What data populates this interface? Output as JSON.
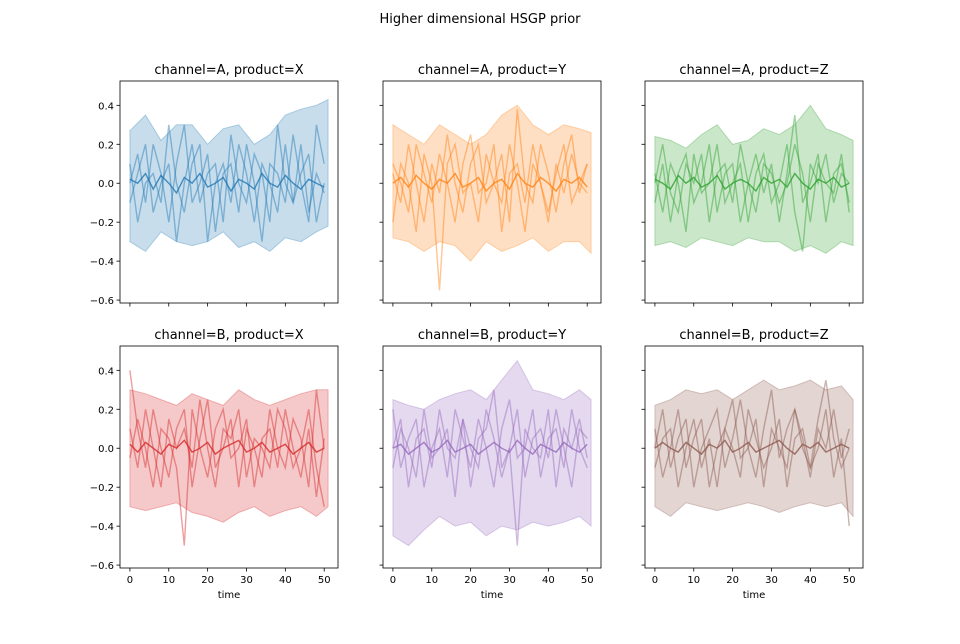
{
  "chart_data": {
    "type": "area",
    "title": "Higher dimensional HSGP prior",
    "shared_y": true,
    "shared_x": true,
    "xlim": [
      -2.55,
      53.55
    ],
    "ylim": [
      -0.615,
      0.525
    ],
    "x_ticks": [
      0,
      10,
      20,
      30,
      40,
      50
    ],
    "y_ticks": [
      -0.6,
      -0.4,
      -0.2,
      0.0,
      0.2,
      0.4
    ],
    "y_tick_labels": [
      "−0.6",
      "−0.4",
      "−0.2",
      "0.0",
      "0.2",
      "0.4"
    ],
    "x_tick_labels": [
      "0",
      "10",
      "20",
      "30",
      "40",
      "50"
    ],
    "xlabel": "time",
    "grid": false,
    "band_x": [
      0,
      4,
      8,
      12,
      16,
      20,
      24,
      28,
      32,
      36,
      40,
      44,
      48,
      51
    ],
    "line_x": [
      0,
      2,
      4,
      6,
      8,
      10,
      12,
      14,
      16,
      18,
      20,
      22,
      24,
      26,
      28,
      30,
      32,
      34,
      36,
      38,
      40,
      42,
      44,
      46,
      48,
      50
    ],
    "panels": [
      {
        "title": "channel=A, product=X",
        "color": "#1f77b4",
        "upper": [
          0.27,
          0.35,
          0.22,
          0.3,
          0.3,
          0.2,
          0.28,
          0.3,
          0.2,
          0.25,
          0.35,
          0.38,
          0.4,
          0.43
        ],
        "lower": [
          -0.3,
          -0.35,
          -0.25,
          -0.3,
          -0.32,
          -0.3,
          -0.25,
          -0.33,
          -0.3,
          -0.35,
          -0.28,
          -0.3,
          -0.25,
          -0.22
        ],
        "lines": [
          [
            0.0,
            0.15,
            -0.1,
            0.2,
            0.05,
            -0.2,
            0.1,
            0.3,
            -0.1,
            0.0,
            0.15,
            -0.25,
            0.05,
            0.1,
            -0.15,
            0.2,
            0.0,
            -0.3,
            0.1,
            0.05,
            -0.1,
            0.25,
            0.0,
            -0.2,
            0.3,
            0.1
          ],
          [
            -0.1,
            0.05,
            0.2,
            -0.15,
            0.0,
            0.1,
            -0.3,
            0.0,
            0.2,
            -0.1,
            0.05,
            0.1,
            -0.2,
            0.25,
            0.0,
            -0.1,
            0.15,
            0.05,
            -0.2,
            0.3,
            0.0,
            -0.1,
            0.2,
            -0.15,
            0.05,
            -0.05
          ],
          [
            0.1,
            -0.2,
            0.0,
            0.05,
            -0.1,
            0.3,
            0.0,
            -0.15,
            0.1,
            0.2,
            -0.3,
            0.0,
            0.1,
            -0.1,
            0.2,
            0.05,
            -0.2,
            0.1,
            0.0,
            -0.15,
            0.2,
            -0.1,
            0.05,
            0.15,
            -0.2,
            0.0
          ],
          [
            0.02,
            0.0,
            0.05,
            -0.03,
            0.04,
            0.0,
            -0.05,
            0.03,
            0.0,
            0.05,
            -0.02,
            0.0,
            0.03,
            -0.04,
            0.02,
            0.0,
            -0.03,
            0.05,
            0.0,
            -0.02,
            0.04,
            0.0,
            -0.03,
            0.02,
            0.0,
            -0.02
          ]
        ]
      },
      {
        "title": "channel=A, product=Y",
        "color": "#ff7f0e",
        "upper": [
          0.3,
          0.25,
          0.2,
          0.3,
          0.25,
          0.2,
          0.25,
          0.35,
          0.4,
          0.3,
          0.25,
          0.3,
          0.28,
          0.26
        ],
        "lower": [
          -0.28,
          -0.3,
          -0.35,
          -0.3,
          -0.32,
          -0.4,
          -0.3,
          -0.35,
          -0.32,
          -0.28,
          -0.35,
          -0.3,
          -0.3,
          -0.36
        ],
        "lines": [
          [
            0.05,
            -0.1,
            0.2,
            0.0,
            -0.2,
            0.1,
            -0.05,
            0.25,
            0.0,
            -0.15,
            0.1,
            0.2,
            -0.1,
            0.0,
            0.15,
            -0.2,
            0.38,
            0.0,
            -0.1,
            0.2,
            0.05,
            -0.15,
            0.1,
            0.25,
            -0.05,
            0.1
          ],
          [
            -0.2,
            0.1,
            0.0,
            -0.25,
            0.15,
            0.0,
            -0.55,
            0.1,
            0.2,
            -0.05,
            0.0,
            -0.2,
            0.15,
            0.0,
            -0.1,
            0.2,
            0.0,
            -0.25,
            0.1,
            0.0,
            -0.15,
            0.05,
            0.2,
            -0.1,
            0.0,
            -0.05
          ],
          [
            0.1,
            0.0,
            -0.15,
            0.2,
            0.05,
            -0.1,
            0.15,
            0.0,
            -0.2,
            0.1,
            0.25,
            -0.05,
            0.0,
            0.2,
            -0.25,
            0.05,
            0.1,
            -0.1,
            0.2,
            0.0,
            -0.2,
            0.1,
            -0.05,
            0.15,
            0.0,
            0.1
          ],
          [
            0.0,
            0.03,
            -0.02,
            0.04,
            0.0,
            -0.03,
            0.02,
            0.0,
            0.05,
            -0.02,
            0.0,
            0.03,
            -0.04,
            0.0,
            0.02,
            -0.03,
            0.05,
            0.0,
            -0.02,
            0.03,
            0.0,
            -0.04,
            0.02,
            0.0,
            0.03,
            -0.02
          ]
        ]
      },
      {
        "title": "channel=A, product=Z",
        "color": "#2ca02c",
        "upper": [
          0.24,
          0.22,
          0.18,
          0.25,
          0.3,
          0.2,
          0.22,
          0.28,
          0.25,
          0.3,
          0.4,
          0.28,
          0.25,
          0.22
        ],
        "lower": [
          -0.32,
          -0.3,
          -0.33,
          -0.28,
          -0.3,
          -0.32,
          -0.28,
          -0.3,
          -0.3,
          -0.35,
          -0.32,
          -0.36,
          -0.3,
          -0.32
        ],
        "lines": [
          [
            -0.1,
            0.1,
            -0.2,
            0.05,
            0.15,
            -0.1,
            0.0,
            0.2,
            -0.15,
            0.05,
            0.1,
            -0.2,
            0.0,
            0.15,
            -0.05,
            0.1,
            -0.2,
            0.05,
            0.35,
            -0.1,
            0.0,
            0.15,
            -0.2,
            0.05,
            0.1,
            -0.1
          ],
          [
            0.05,
            -0.15,
            0.1,
            0.0,
            -0.25,
            0.15,
            -0.05,
            0.0,
            0.2,
            -0.1,
            0.0,
            0.1,
            -0.2,
            0.05,
            0.15,
            -0.1,
            0.0,
            0.2,
            -0.15,
            -0.35,
            0.1,
            0.0,
            0.15,
            -0.1,
            0.05,
            0.0
          ],
          [
            0.0,
            0.2,
            -0.05,
            -0.15,
            0.1,
            0.0,
            0.15,
            -0.2,
            0.05,
            0.1,
            -0.1,
            0.2,
            0.0,
            -0.15,
            0.1,
            0.05,
            -0.1,
            0.0,
            0.2,
            0.05,
            -0.2,
            0.1,
            0.0,
            -0.05,
            0.15,
            -0.15
          ],
          [
            0.02,
            0.0,
            -0.03,
            0.04,
            0.0,
            0.03,
            -0.02,
            0.0,
            0.04,
            -0.03,
            0.0,
            0.02,
            0.0,
            -0.04,
            0.03,
            0.0,
            0.02,
            -0.02,
            0.05,
            0.0,
            -0.03,
            0.02,
            0.0,
            0.03,
            -0.02,
            0.0
          ]
        ]
      },
      {
        "title": "channel=B, product=X",
        "color": "#d62728",
        "upper": [
          0.3,
          0.28,
          0.25,
          0.22,
          0.28,
          0.25,
          0.22,
          0.3,
          0.25,
          0.22,
          0.25,
          0.28,
          0.3,
          0.3
        ],
        "lower": [
          -0.3,
          -0.32,
          -0.3,
          -0.28,
          -0.33,
          -0.35,
          -0.38,
          -0.33,
          -0.3,
          -0.35,
          -0.32,
          -0.3,
          -0.35,
          -0.3
        ],
        "lines": [
          [
            0.4,
            0.1,
            -0.1,
            0.2,
            0.0,
            -0.15,
            0.1,
            0.2,
            -0.2,
            0.05,
            0.25,
            -0.1,
            0.0,
            0.15,
            -0.2,
            0.1,
            0.0,
            -0.15,
            0.2,
            0.0,
            -0.1,
            0.15,
            0.05,
            -0.2,
            0.3,
            0.0
          ],
          [
            -0.05,
            0.15,
            0.0,
            -0.2,
            0.1,
            0.05,
            -0.1,
            -0.5,
            0.2,
            0.0,
            -0.15,
            0.1,
            0.2,
            -0.05,
            0.0,
            0.15,
            -0.2,
            0.05,
            0.1,
            -0.1,
            0.2,
            0.0,
            -0.15,
            0.1,
            -0.25,
            0.05
          ],
          [
            0.1,
            -0.1,
            0.2,
            0.0,
            -0.2,
            0.15,
            0.0,
            0.1,
            -0.1,
            0.25,
            0.0,
            -0.2,
            0.1,
            0.05,
            0.2,
            -0.15,
            0.05,
            0.0,
            -0.1,
            0.2,
            0.1,
            -0.1,
            0.0,
            0.2,
            -0.1,
            -0.3
          ],
          [
            0.02,
            -0.02,
            0.03,
            0.0,
            -0.03,
            0.02,
            0.0,
            0.04,
            -0.02,
            0.0,
            0.03,
            -0.03,
            0.0,
            0.02,
            0.04,
            -0.02,
            0.0,
            0.03,
            -0.02,
            0.0,
            0.02,
            -0.03,
            0.0,
            0.03,
            -0.02,
            0.0
          ]
        ]
      },
      {
        "title": "channel=B, product=Y",
        "color": "#9467bd",
        "upper": [
          0.25,
          0.22,
          0.2,
          0.25,
          0.28,
          0.3,
          0.25,
          0.35,
          0.45,
          0.3,
          0.28,
          0.25,
          0.3,
          0.25
        ],
        "lower": [
          -0.45,
          -0.5,
          -0.42,
          -0.35,
          -0.4,
          -0.38,
          -0.45,
          -0.4,
          -0.42,
          -0.38,
          -0.4,
          -0.38,
          -0.35,
          -0.4
        ],
        "lines": [
          [
            0.2,
            -0.1,
            0.05,
            0.15,
            -0.2,
            0.0,
            0.1,
            -0.15,
            0.2,
            0.05,
            -0.1,
            0.15,
            0.0,
            -0.2,
            0.1,
            0.25,
            -0.05,
            0.0,
            0.2,
            -0.15,
            0.05,
            0.1,
            -0.1,
            0.2,
            0.0,
            -0.1
          ],
          [
            -0.1,
            0.1,
            0.0,
            -0.15,
            0.2,
            -0.05,
            0.0,
            0.1,
            -0.25,
            0.15,
            0.0,
            -0.1,
            0.2,
            0.05,
            -0.15,
            0.0,
            -0.5,
            0.1,
            0.0,
            -0.05,
            0.2,
            -0.2,
            0.1,
            0.0,
            0.15,
            -0.05
          ],
          [
            0.0,
            0.15,
            -0.2,
            0.05,
            0.1,
            -0.1,
            0.2,
            0.0,
            -0.05,
            0.15,
            -0.2,
            0.05,
            0.1,
            0.3,
            -0.1,
            0.0,
            0.2,
            -0.15,
            0.05,
            0.1,
            -0.05,
            0.2,
            0.0,
            -0.2,
            0.1,
            0.05
          ],
          [
            0.0,
            0.02,
            -0.03,
            0.0,
            0.03,
            -0.02,
            0.0,
            0.04,
            -0.02,
            0.0,
            0.02,
            -0.03,
            0.0,
            0.03,
            0.0,
            -0.02,
            0.04,
            0.0,
            -0.03,
            0.02,
            0.0,
            -0.02,
            0.03,
            0.0,
            -0.02,
            0.02
          ]
        ]
      },
      {
        "title": "channel=B, product=Z",
        "color": "#8c564b",
        "upper": [
          0.22,
          0.25,
          0.3,
          0.28,
          0.3,
          0.25,
          0.3,
          0.35,
          0.3,
          0.32,
          0.35,
          0.3,
          0.32,
          0.25
        ],
        "lower": [
          -0.3,
          -0.35,
          -0.28,
          -0.3,
          -0.32,
          -0.3,
          -0.28,
          -0.3,
          -0.33,
          -0.3,
          -0.28,
          -0.3,
          -0.28,
          -0.35
        ],
        "lines": [
          [
            0.0,
            0.2,
            -0.1,
            0.05,
            0.15,
            -0.2,
            0.0,
            0.1,
            0.2,
            -0.1,
            0.05,
            0.25,
            0.0,
            -0.15,
            0.1,
            0.3,
            -0.05,
            0.1,
            0.2,
            0.0,
            -0.1,
            0.15,
            0.35,
            0.05,
            -0.1,
            0.0
          ],
          [
            -0.1,
            0.05,
            0.1,
            -0.2,
            0.0,
            0.15,
            -0.1,
            0.05,
            -0.2,
            0.1,
            0.0,
            -0.15,
            0.2,
            0.05,
            -0.1,
            0.0,
            0.15,
            -0.2,
            0.05,
            0.1,
            -0.1,
            0.0,
            0.2,
            -0.15,
            0.05,
            -0.4
          ],
          [
            0.1,
            -0.15,
            0.0,
            0.2,
            -0.1,
            0.05,
            0.15,
            -0.2,
            0.0,
            0.1,
            0.25,
            -0.05,
            0.0,
            0.15,
            -0.2,
            0.1,
            0.0,
            -0.1,
            0.2,
            0.05,
            -0.15,
            0.1,
            0.0,
            0.2,
            -0.05,
            0.1
          ],
          [
            0.0,
            0.03,
            0.0,
            -0.02,
            0.03,
            0.0,
            -0.03,
            0.02,
            0.0,
            0.04,
            -0.02,
            0.0,
            0.03,
            -0.02,
            0.0,
            0.02,
            0.04,
            0.0,
            -0.03,
            0.02,
            0.0,
            0.03,
            -0.02,
            0.0,
            0.02,
            0.0
          ]
        ]
      }
    ]
  }
}
